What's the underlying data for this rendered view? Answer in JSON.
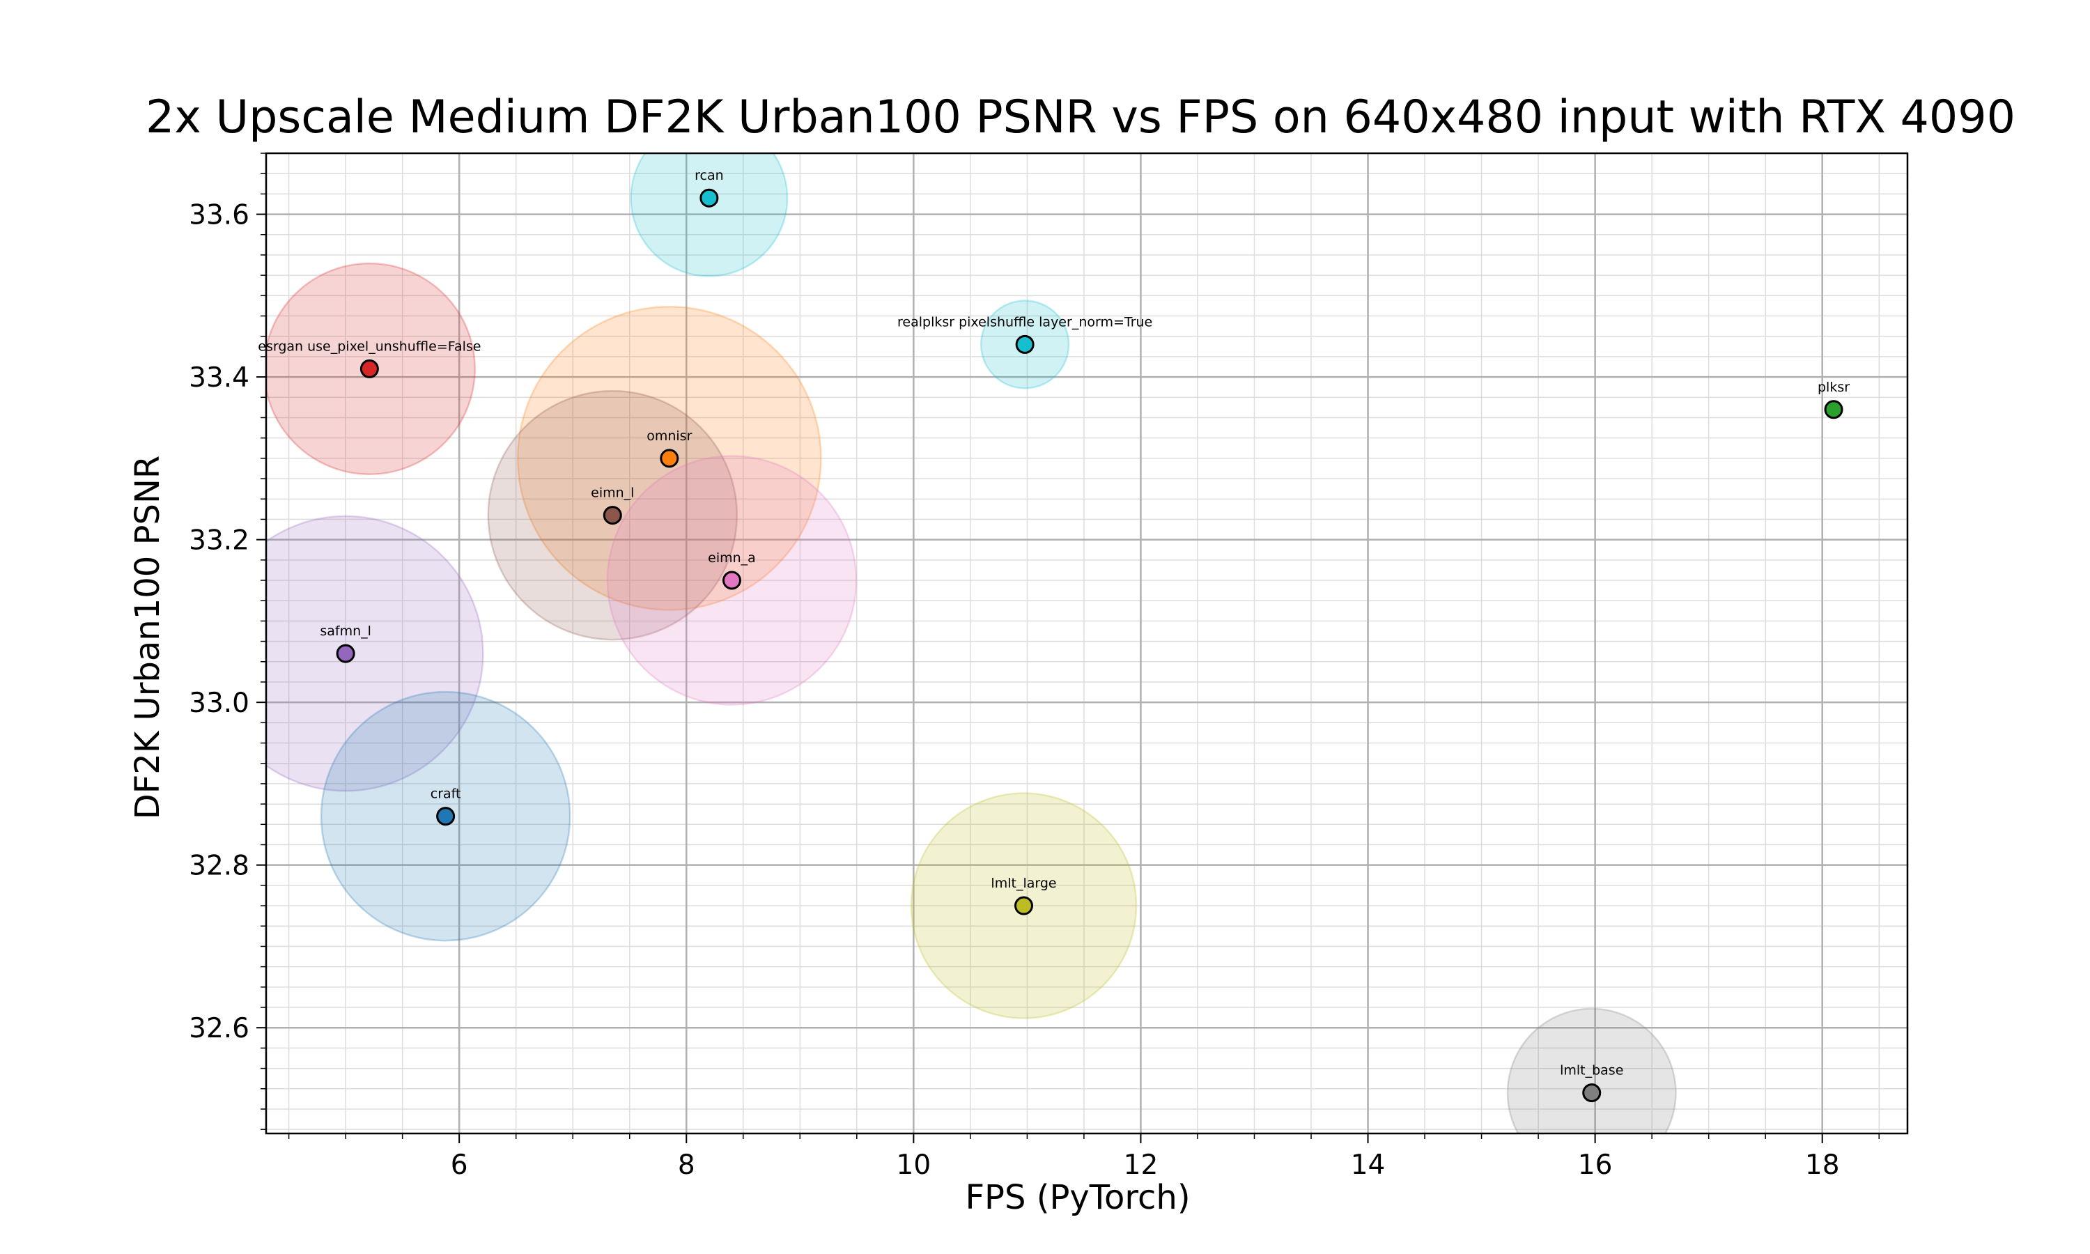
{
  "chart_data": {
    "type": "scatter",
    "title": "2x Upscale Medium DF2K Urban100 PSNR vs FPS on 640x480 input with RTX 4090",
    "xlabel": "FPS (PyTorch)",
    "ylabel": "DF2K Urban100 PSNR",
    "xlim": [
      4.3,
      18.75
    ],
    "ylim": [
      32.47,
      33.675
    ],
    "xticks": [
      6,
      8,
      10,
      12,
      14,
      16,
      18
    ],
    "xtick_labels": [
      "6",
      "8",
      "10",
      "12",
      "14",
      "16",
      "18"
    ],
    "yticks": [
      32.6,
      32.8,
      33.0,
      33.2,
      33.4,
      33.6
    ],
    "ytick_labels": [
      "32.6",
      "32.8",
      "33.0",
      "33.2",
      "33.4",
      "33.6"
    ],
    "grid": true,
    "minor_grid": true,
    "points": [
      {
        "label": "rcan",
        "x": 8.2,
        "y": 33.62,
        "size": 0.66,
        "color": "#17becf"
      },
      {
        "label": "realplksr pixelshuffle layer_norm=True",
        "x": 10.98,
        "y": 33.44,
        "size": 0.37,
        "color": "#17becf"
      },
      {
        "label": "esrgan use_pixel_unshuffle=False",
        "x": 5.21,
        "y": 33.41,
        "size": 0.89,
        "color": "#d62728"
      },
      {
        "label": "plksr",
        "x": 18.1,
        "y": 33.36,
        "size": 0.0,
        "color": "#2ca02c"
      },
      {
        "label": "omnisr",
        "x": 7.85,
        "y": 33.3,
        "size": 1.28,
        "color": "#ff7f0e"
      },
      {
        "label": "eimn_l",
        "x": 7.35,
        "y": 33.23,
        "size": 1.05,
        "color": "#8c564b"
      },
      {
        "label": "eimn_a",
        "x": 8.4,
        "y": 33.15,
        "size": 1.05,
        "color": "#e377c2"
      },
      {
        "label": "safmn_l",
        "x": 5.0,
        "y": 33.06,
        "size": 1.16,
        "color": "#9467bd"
      },
      {
        "label": "craft",
        "x": 5.88,
        "y": 32.86,
        "size": 1.05,
        "color": "#1f77b4"
      },
      {
        "label": "lmlt_large",
        "x": 10.97,
        "y": 32.75,
        "size": 0.95,
        "color": "#bcbd22"
      },
      {
        "label": "lmlt_base",
        "x": 15.97,
        "y": 32.52,
        "size": 0.71,
        "color": "#7f7f7f"
      }
    ]
  }
}
